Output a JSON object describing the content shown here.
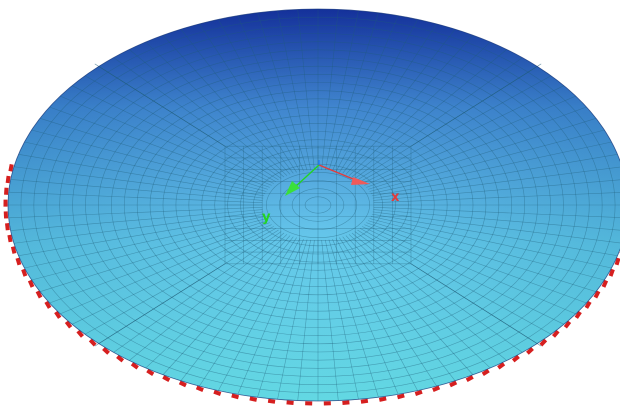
{
  "viewport": {
    "background": "#ffffff",
    "mesh": {
      "shape": "circular-plate",
      "color_near": "#66e6f2",
      "color_far": "#1433a6",
      "grid_line_color": "#1f5d78",
      "rings": 24,
      "radial_divisions": 96
    },
    "supports": {
      "color": "#d61f1f",
      "count": 60
    },
    "axes": {
      "x": {
        "label": "x",
        "color": "#e23b3b"
      },
      "y": {
        "label": "y",
        "color": "#22d422"
      },
      "z": {
        "label": "",
        "color": "#1a7aff"
      }
    }
  }
}
